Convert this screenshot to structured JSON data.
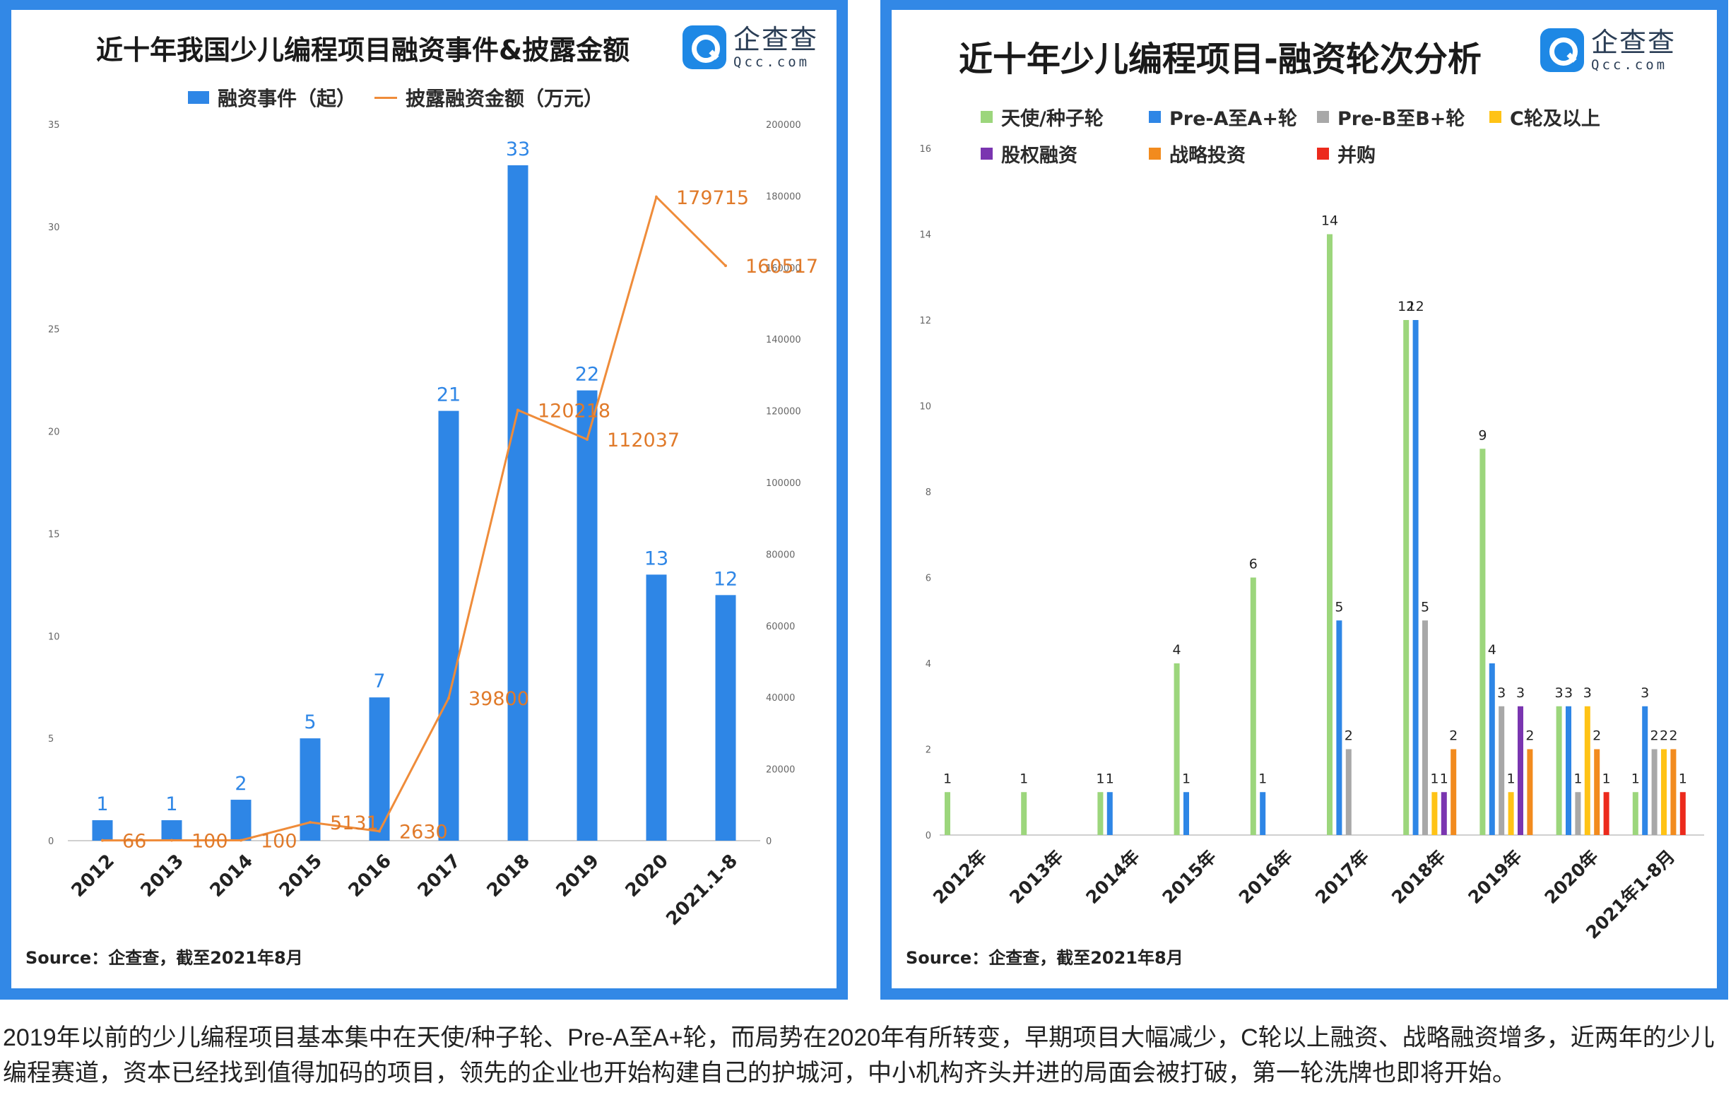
{
  "left": {
    "title": "近十年我国少儿编程项目融资事件&披露金额",
    "logo": {
      "cn": "企查查",
      "en": "Qcc.com"
    },
    "legend_bar": "融资事件（起）",
    "legend_line": "披露融资金额（万元）",
    "source": "Source：企查查，截至2021年8月"
  },
  "right": {
    "title": "近十年少儿编程项目-融资轮次分析",
    "logo": {
      "cn": "企查查",
      "en": "Qcc.com"
    },
    "source": "Source：企查查，截至2021年8月"
  },
  "caption": "2019年以前的少儿编程项目基本集中在天使/种子轮、Pre-A至A+轮，而局势在2020年有所转变，早期项目大幅减少，C轮以上融资、战略融资增多，近两年的少儿编程赛道，资本已经找到值得加码的项目，领先的企业也开始构建自己的护城河，中小机构齐头并进的局面会被打破，第一轮洗牌也即将开始。",
  "chart_data": [
    {
      "type": "bar+line",
      "title": "近十年我国少儿编程项目融资事件&披露金额",
      "categories": [
        "2012",
        "2013",
        "2014",
        "2015",
        "2016",
        "2017",
        "2018",
        "2019",
        "2020",
        "2021.1-8"
      ],
      "series": [
        {
          "name": "融资事件（起）",
          "type": "bar",
          "axis": "left",
          "color": "#2e86e6",
          "values": [
            1,
            1,
            2,
            5,
            7,
            21,
            33,
            22,
            13,
            12
          ]
        },
        {
          "name": "披露融资金额（万元）",
          "type": "line",
          "axis": "right",
          "color": "#ef8c3a",
          "values": [
            66,
            100,
            100,
            5131,
            2630,
            39800,
            120218,
            112037,
            179715,
            160517
          ],
          "labels": [
            "66",
            "100",
            "100",
            "5131",
            "2630",
            "39800",
            "120218",
            "112037",
            "179715",
            "160517"
          ]
        }
      ],
      "y_left": {
        "min": 0,
        "max": 35,
        "ticks": [
          "0",
          "5",
          "10",
          "15",
          "20",
          "25",
          "30",
          "35"
        ]
      },
      "y_right": {
        "min": 0,
        "max": 200000,
        "ticks": [
          "0",
          "20000",
          "40000",
          "60000",
          "80000",
          "100000",
          "120000",
          "140000",
          "160000",
          "180000",
          "200000"
        ]
      },
      "grid": false,
      "legend": "top"
    },
    {
      "type": "bar",
      "title": "近十年少儿编程项目-融资轮次分析",
      "categories": [
        "2012年",
        "2013年",
        "2014年",
        "2015年",
        "2016年",
        "2017年",
        "2018年",
        "2019年",
        "2020年",
        "2021年1-8月"
      ],
      "series": [
        {
          "name": "天使/种子轮",
          "color": "#9cd67c",
          "values": [
            1,
            1,
            1,
            4,
            6,
            14,
            12,
            9,
            3,
            1
          ]
        },
        {
          "name": "Pre-A至A+轮",
          "color": "#2e86e6",
          "values": [
            0,
            0,
            1,
            1,
            1,
            5,
            12,
            4,
            3,
            3
          ]
        },
        {
          "name": "Pre-B至B+轮",
          "color": "#a8a8a8",
          "values": [
            0,
            0,
            0,
            0,
            0,
            2,
            5,
            3,
            1,
            2
          ]
        },
        {
          "name": "C轮及以上",
          "color": "#ffc316",
          "values": [
            0,
            0,
            0,
            0,
            0,
            0,
            1,
            1,
            3,
            2
          ]
        },
        {
          "name": "股权融资",
          "color": "#7a35b0",
          "values": [
            0,
            0,
            0,
            0,
            0,
            0,
            1,
            3,
            0,
            0
          ]
        },
        {
          "name": "战略投资",
          "color": "#f28b1e",
          "values": [
            0,
            0,
            0,
            0,
            0,
            0,
            2,
            2,
            2,
            2
          ]
        },
        {
          "name": "并购",
          "color": "#ec2a1c",
          "values": [
            0,
            0,
            0,
            0,
            0,
            0,
            0,
            0,
            1,
            1
          ]
        }
      ],
      "y": {
        "min": 0,
        "max": 16,
        "ticks": [
          "0",
          "2",
          "4",
          "6",
          "8",
          "10",
          "12",
          "14",
          "16"
        ]
      },
      "grid": false,
      "legend": "top"
    }
  ]
}
